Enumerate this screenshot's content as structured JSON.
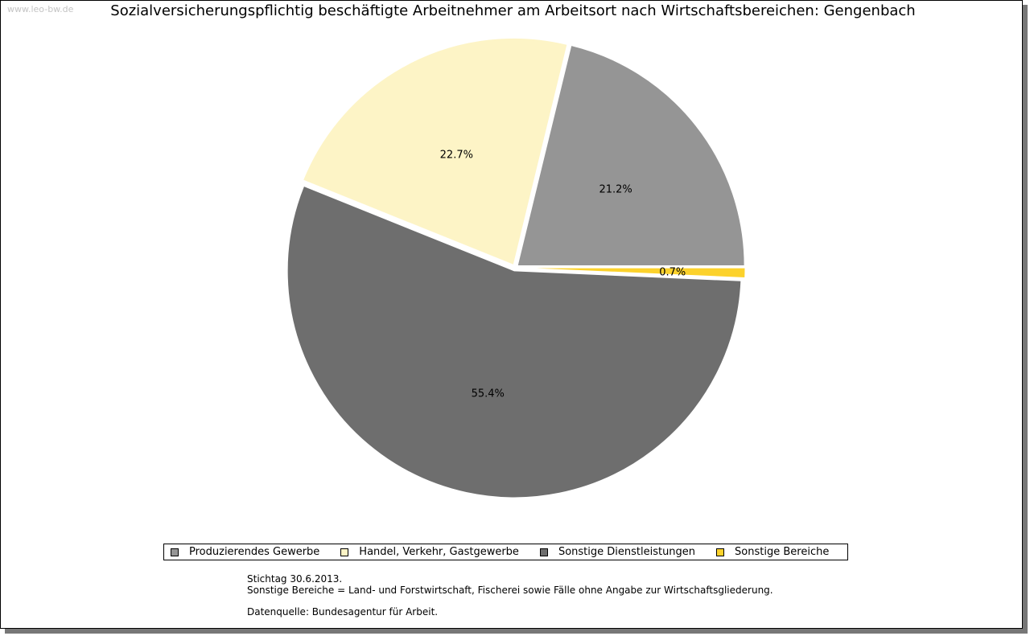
{
  "watermark": "www.leo-bw.de",
  "chart_data": {
    "type": "pie",
    "title": "Sozialversicherungspflichtig beschäftigte Arbeitnehmer am Arbeitsort nach Wirtschaftsbereichen: Gengenbach",
    "slices": [
      {
        "name": "Produzierendes Gewerbe",
        "value": 21.2,
        "label": "21.2%",
        "color": "#959595"
      },
      {
        "name": "Handel, Verkehr, Gastgewerbe",
        "value": 22.7,
        "label": "22.7%",
        "color": "#fdf4c6"
      },
      {
        "name": "Sonstige Dienstleistungen",
        "value": 55.4,
        "label": "55.4%",
        "color": "#6e6e6e"
      },
      {
        "name": "Sonstige Bereiche",
        "value": 0.7,
        "label": "0.7%",
        "color": "#fcd22c"
      }
    ],
    "legend_position": "bottom"
  },
  "notes": {
    "stichtag": "Stichtag 30.6.2013.",
    "definition": "Sonstige Bereiche = Land- und Forstwirtschaft, Fischerei sowie Fälle ohne Angabe zur Wirtschaftsgliederung.",
    "source": "Datenquelle: Bundesagentur für Arbeit."
  }
}
